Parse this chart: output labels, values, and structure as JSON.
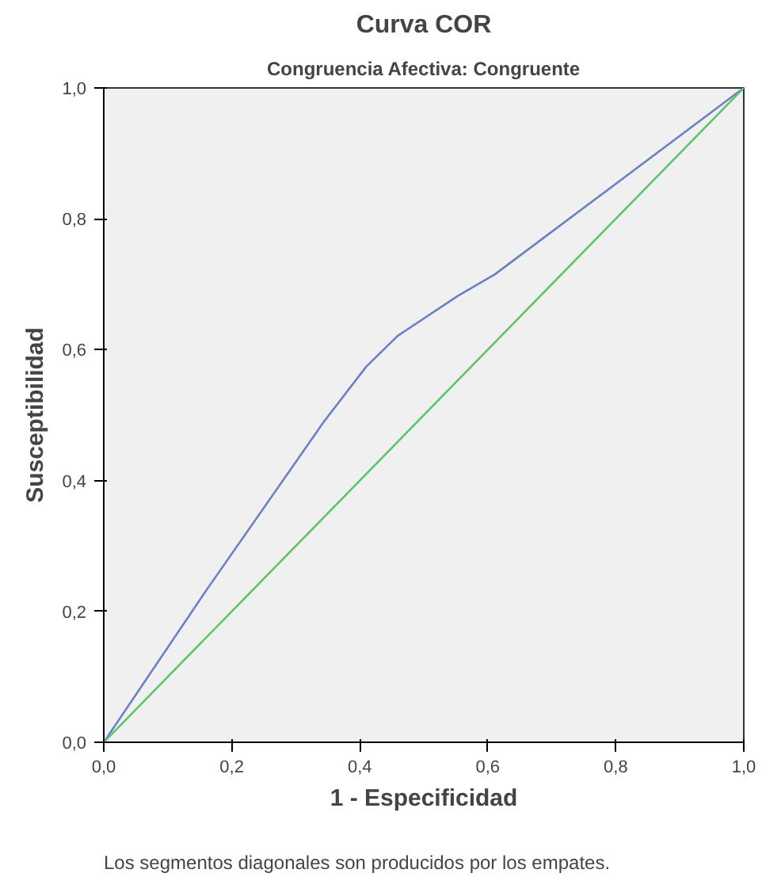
{
  "chart_data": {
    "type": "line",
    "title": "Curva COR",
    "subtitle": "Congruencia Afectiva: Congruente",
    "xlabel": "1 - Especificidad",
    "ylabel": "Susceptibilidad",
    "series": [
      {
        "color": "#6b7fc6",
        "x": [
          0,
          0.16,
          0.344,
          0.41,
          0.459,
          0.553,
          0.611,
          1
        ],
        "values": [
          0,
          0.232,
          0.49,
          0.574,
          0.621,
          0.682,
          0.715,
          1
        ]
      },
      {
        "color": "#5cc46a",
        "x": [
          0,
          1
        ],
        "values": [
          0,
          1
        ]
      }
    ],
    "xlim": [
      0,
      1
    ],
    "ylim": [
      0,
      1
    ],
    "xticks": [
      {
        "value": 0,
        "label": "0,0"
      },
      {
        "value": 0.2,
        "label": "0,2"
      },
      {
        "value": 0.4,
        "label": "0,4"
      },
      {
        "value": 0.6,
        "label": "0,6"
      },
      {
        "value": 0.8,
        "label": "0,8"
      },
      {
        "value": 1,
        "label": "1,0"
      }
    ],
    "yticks": [
      {
        "value": 0,
        "label": "0,0"
      },
      {
        "value": 0.2,
        "label": "0,2"
      },
      {
        "value": 0.4,
        "label": "0,4"
      },
      {
        "value": 0.6,
        "label": "0,6"
      },
      {
        "value": 0.8,
        "label": "0,8"
      },
      {
        "value": 1,
        "label": "1,0"
      }
    ],
    "grid": false,
    "annotations": [
      "Los segmentos diagonales son producidos por los empates."
    ]
  }
}
